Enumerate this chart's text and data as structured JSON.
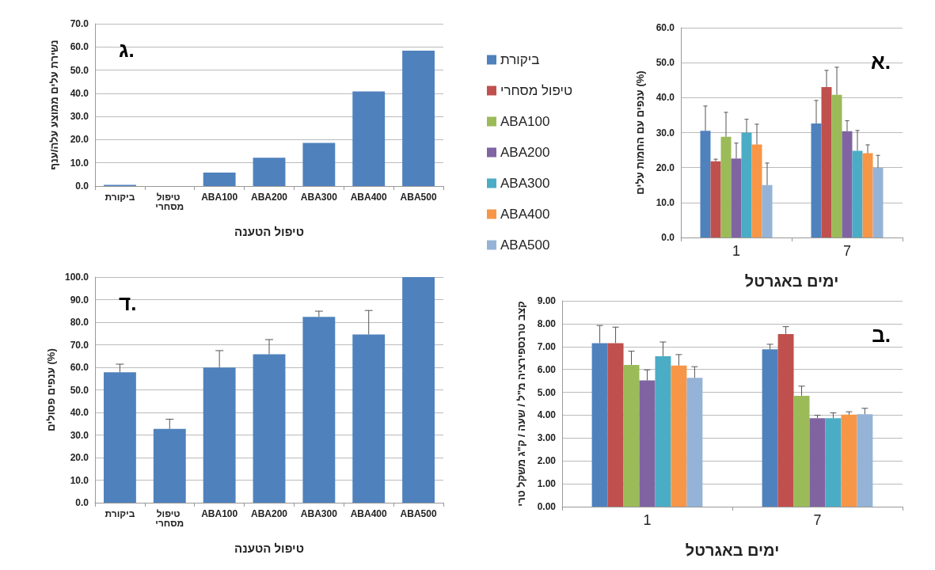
{
  "chart_data": [
    {
      "type": "bar",
      "title": "ג.",
      "xlabel": "טיפול הטענה",
      "ylabel": "נשירת עלים ממוצע עלה/ענף",
      "categories": [
        "ביקורת",
        "טיפול מסחרי",
        "ABA100",
        "ABA200",
        "ABA300",
        "ABA400",
        "ABA500"
      ],
      "values": [
        0.5,
        0,
        5.8,
        12.2,
        18.6,
        40.8,
        58.4
      ],
      "color": "#4f81bd",
      "ylim": [
        0,
        70
      ],
      "yticks": [
        {
          "value": 0,
          "label": "0.0"
        },
        {
          "value": 10,
          "label": "10.0"
        },
        {
          "value": 20,
          "label": "20.0"
        },
        {
          "value": 30,
          "label": "30.0"
        },
        {
          "value": 40,
          "label": "40.0"
        },
        {
          "value": 50,
          "label": "50.0"
        },
        {
          "value": 60,
          "label": "60.0"
        },
        {
          "value": 70,
          "label": "70.0"
        }
      ],
      "grid": "y"
    },
    {
      "type": "bar",
      "title": "א.",
      "xlabel": "ימים באגרטל",
      "ylabel": "ענפים עם החמות עלים (%)",
      "categories": [
        "1",
        "7"
      ],
      "ylim": [
        0,
        60
      ],
      "yticks": [
        {
          "value": 0,
          "label": "0.0"
        },
        {
          "value": 10,
          "label": "10.0"
        },
        {
          "value": 20,
          "label": "20.0"
        },
        {
          "value": 30,
          "label": "30.0"
        },
        {
          "value": 40,
          "label": "40.0"
        },
        {
          "value": 50,
          "label": "50.0"
        },
        {
          "value": 60,
          "label": "60.0"
        }
      ],
      "grid": "y",
      "legend": "left",
      "series": [
        {
          "name": "ביקורת",
          "color": "#4f81bd",
          "values": [
            30.5,
            32.6
          ],
          "errors": [
            [
              30.5,
              37.6
            ],
            [
              32.6,
              39.2
            ]
          ]
        },
        {
          "name": "טיפול מסחרי",
          "color": "#c0504d",
          "values": [
            21.8,
            43.0
          ],
          "errors": [
            [
              21.8,
              22.4
            ],
            [
              43.0,
              47.8
            ]
          ]
        },
        {
          "name": "ABA100",
          "color": "#9bbb59",
          "values": [
            28.8,
            40.8
          ],
          "errors": [
            [
              28.8,
              35.8
            ],
            [
              40.8,
              48.7
            ]
          ]
        },
        {
          "name": "ABA200",
          "color": "#8064a2",
          "values": [
            22.6,
            30.4
          ],
          "errors": [
            [
              22.6,
              27.0
            ],
            [
              30.4,
              33.4
            ]
          ]
        },
        {
          "name": "ABA300",
          "color": "#4bacc6",
          "values": [
            30.0,
            24.8
          ],
          "errors": [
            [
              30.0,
              33.8
            ],
            [
              24.8,
              30.6
            ]
          ]
        },
        {
          "name": "ABA400",
          "color": "#f79646",
          "values": [
            26.6,
            24.1
          ],
          "errors": [
            [
              26.6,
              32.4
            ],
            [
              24.1,
              26.5
            ]
          ]
        },
        {
          "name": "ABA500",
          "color": "#95b3d7",
          "values": [
            15.0,
            19.9
          ],
          "errors": [
            [
              15.0,
              21.3
            ],
            [
              19.9,
              23.5
            ]
          ]
        }
      ]
    },
    {
      "type": "bar",
      "title": "ד.",
      "xlabel": "טיפול הטענה",
      "ylabel": "ענפים פסולים (%)",
      "categories": [
        "ביקורת",
        "טיפול מסחרי",
        "ABA100",
        "ABA200",
        "ABA300",
        "ABA400",
        "ABA500"
      ],
      "values": [
        57.8,
        32.7,
        59.9,
        65.8,
        82.4,
        74.6,
        100
      ],
      "errors": [
        [
          57.8,
          61.4
        ],
        [
          32.7,
          37.0
        ],
        [
          59.9,
          67.4
        ],
        [
          65.8,
          72.3
        ],
        [
          82.4,
          84.9
        ],
        [
          74.6,
          85.2
        ],
        null
      ],
      "color": "#4f81bd",
      "ylim": [
        0,
        100
      ],
      "yticks": [
        {
          "value": 0,
          "label": "0.0"
        },
        {
          "value": 10,
          "label": "10.0"
        },
        {
          "value": 20,
          "label": "20.0"
        },
        {
          "value": 30,
          "label": "30.0"
        },
        {
          "value": 40,
          "label": "40.0"
        },
        {
          "value": 50,
          "label": "50.0"
        },
        {
          "value": 60,
          "label": "60.0"
        },
        {
          "value": 70,
          "label": "70.0"
        },
        {
          "value": 80,
          "label": "80.0"
        },
        {
          "value": 90,
          "label": "90.0"
        },
        {
          "value": 100,
          "label": "100.0"
        }
      ],
      "grid": "y"
    },
    {
      "type": "bar",
      "title": "ב.",
      "xlabel": "ימים באגרטל",
      "ylabel": "קצב טרנספירציה מ\"ל / שעה / ק\"ג משקל טרי",
      "categories": [
        "1",
        "7"
      ],
      "ylim": [
        0,
        9
      ],
      "yticks": [
        {
          "value": 0,
          "label": "0.00"
        },
        {
          "value": 1,
          "label": "1.00"
        },
        {
          "value": 2,
          "label": "2.00"
        },
        {
          "value": 3,
          "label": "3.00"
        },
        {
          "value": 4,
          "label": "4.00"
        },
        {
          "value": 5,
          "label": "5.00"
        },
        {
          "value": 6,
          "label": "6.00"
        },
        {
          "value": 7,
          "label": "7.00"
        },
        {
          "value": 8,
          "label": "8.00"
        },
        {
          "value": 9,
          "label": "9.00"
        }
      ],
      "grid": "y",
      "series": [
        {
          "color": "#4f81bd",
          "values": [
            7.15,
            6.88
          ],
          "errors": [
            [
              7.15,
              7.92
            ],
            [
              6.88,
              7.1
            ]
          ]
        },
        {
          "color": "#c0504d",
          "values": [
            7.15,
            7.55
          ],
          "errors": [
            [
              7.15,
              7.85
            ],
            [
              7.55,
              7.87
            ]
          ]
        },
        {
          "color": "#9bbb59",
          "values": [
            6.2,
            4.85
          ],
          "errors": [
            [
              6.2,
              6.8
            ],
            [
              4.85,
              5.27
            ]
          ]
        },
        {
          "color": "#8064a2",
          "values": [
            5.52,
            3.87
          ],
          "errors": [
            [
              5.52,
              5.98
            ],
            [
              3.87,
              4.0
            ]
          ]
        },
        {
          "color": "#4bacc6",
          "values": [
            6.58,
            3.87
          ],
          "errors": [
            [
              6.58,
              7.2
            ],
            [
              3.87,
              4.1
            ]
          ]
        },
        {
          "color": "#f79646",
          "values": [
            6.17,
            4.02
          ],
          "errors": [
            [
              6.17,
              6.65
            ],
            [
              4.02,
              4.15
            ]
          ]
        },
        {
          "color": "#95b3d7",
          "values": [
            5.63,
            4.04
          ],
          "errors": [
            [
              5.63,
              6.12
            ],
            [
              4.04,
              4.3
            ]
          ]
        }
      ]
    }
  ]
}
